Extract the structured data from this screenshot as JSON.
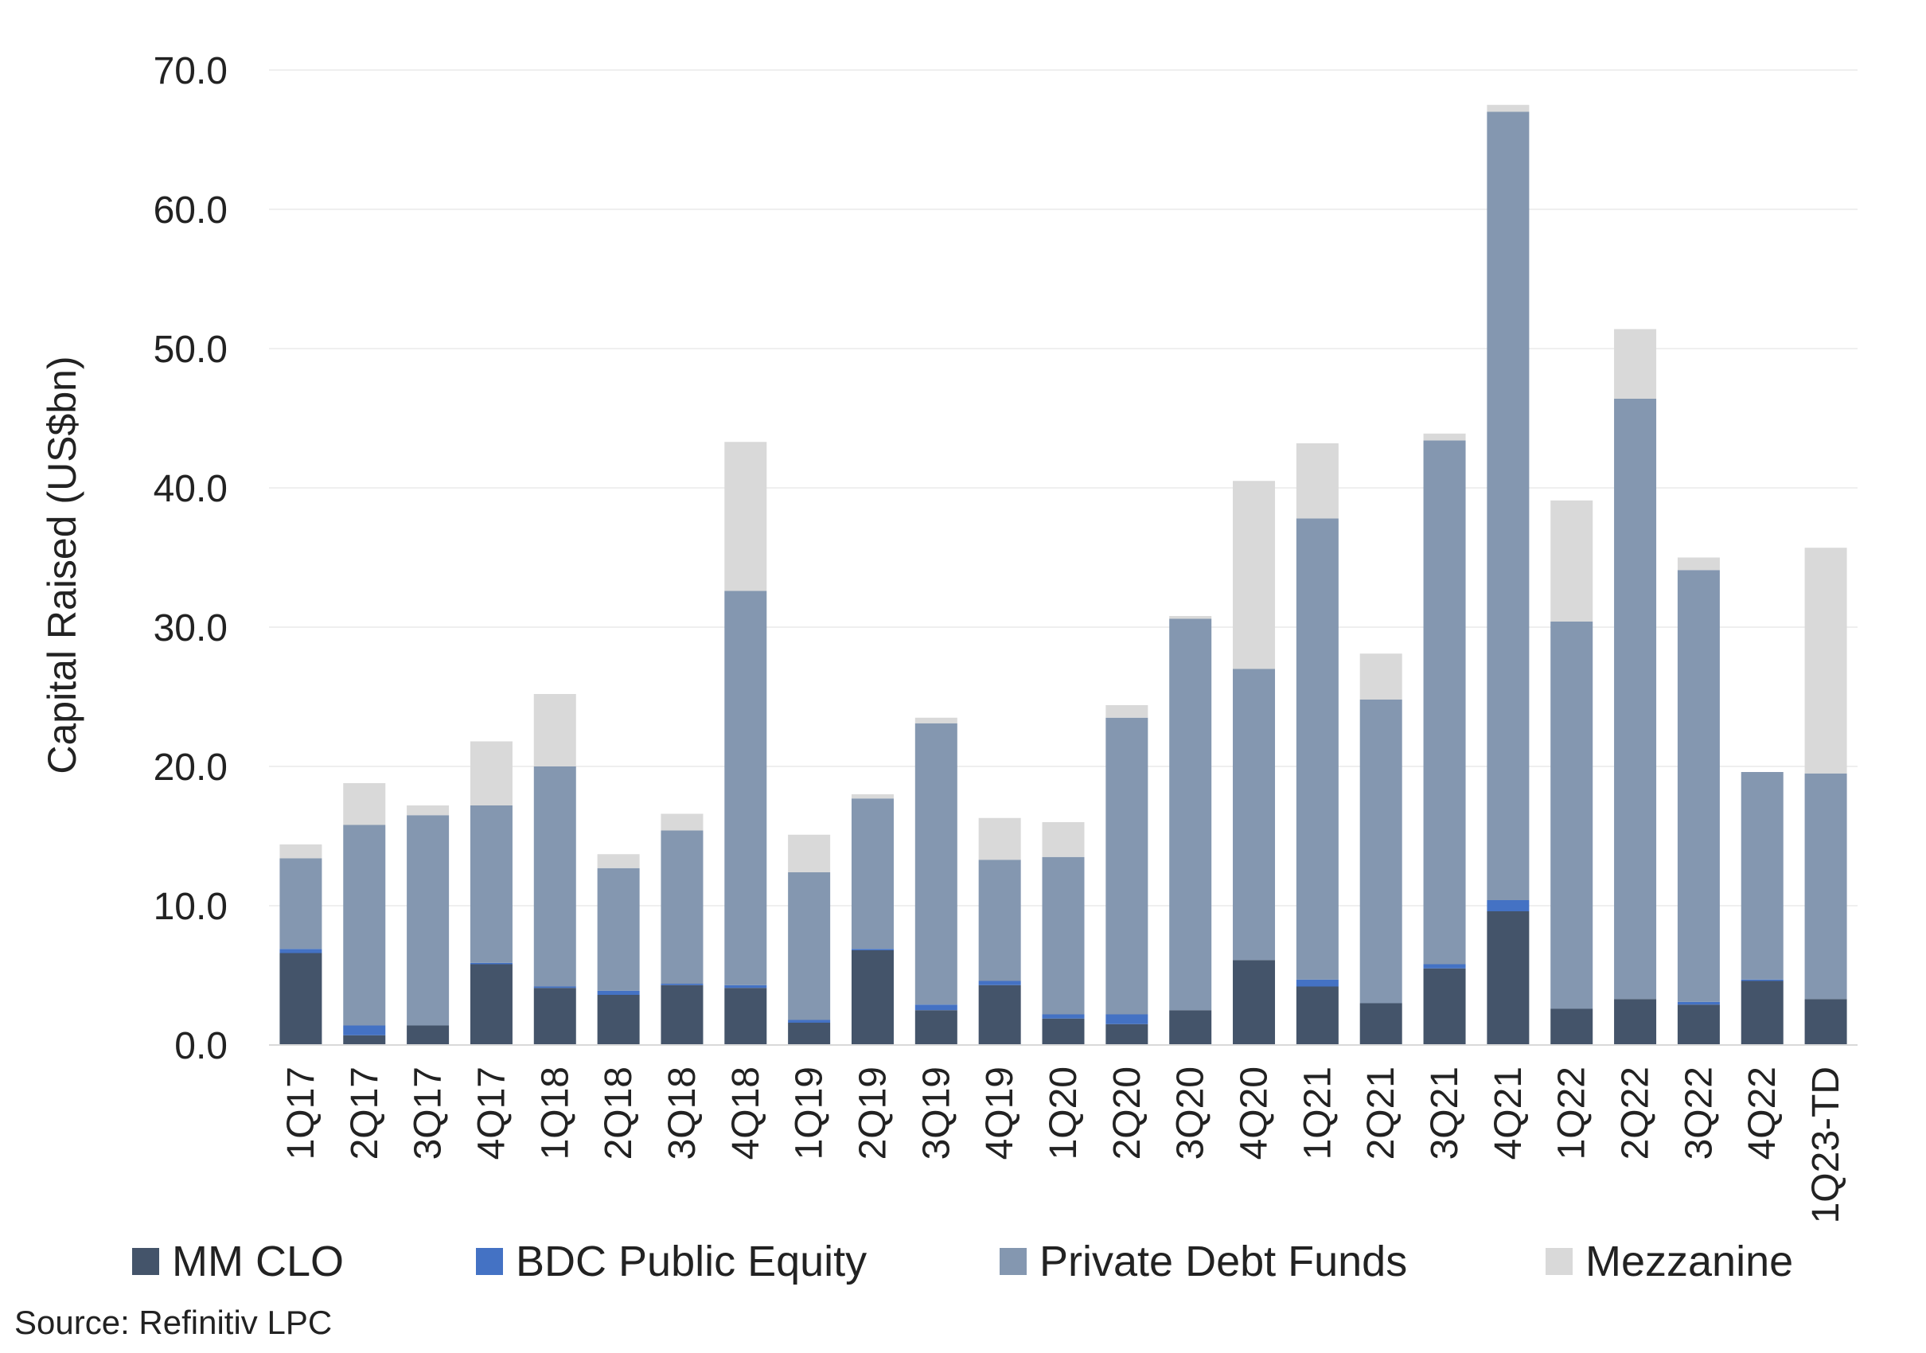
{
  "source": "Source: Refinitiv LPC",
  "colors": {
    "MM CLO": "#44546a",
    "BDC Public Equity": "#4472c4",
    "Private Debt Funds": "#8497b0",
    "Mezzanine": "#d9d9d9"
  },
  "chart_data": {
    "type": "bar",
    "stacked": true,
    "ylabel": "Capital Raised (US$bn)",
    "ylim": [
      0,
      70
    ],
    "yticks": [
      "0.0",
      "10.0",
      "20.0",
      "30.0",
      "40.0",
      "50.0",
      "60.0",
      "70.0"
    ],
    "grid": true,
    "legend_position": "bottom",
    "categories": [
      "1Q17",
      "2Q17",
      "3Q17",
      "4Q17",
      "1Q18",
      "2Q18",
      "3Q18",
      "4Q18",
      "1Q19",
      "2Q19",
      "3Q19",
      "4Q19",
      "1Q20",
      "2Q20",
      "3Q20",
      "4Q20",
      "1Q21",
      "2Q21",
      "3Q21",
      "4Q21",
      "1Q22",
      "2Q22",
      "3Q22",
      "4Q22",
      "1Q23-TD"
    ],
    "series": [
      {
        "name": "MM CLO",
        "values": [
          6.6,
          0.7,
          1.4,
          5.8,
          4.1,
          3.6,
          4.3,
          4.1,
          1.6,
          6.8,
          2.5,
          4.3,
          1.9,
          1.5,
          2.5,
          6.1,
          4.2,
          3.0,
          5.5,
          9.6,
          2.6,
          3.3,
          2.9,
          4.6,
          3.3
        ]
      },
      {
        "name": "BDC Public Equity",
        "values": [
          0.3,
          0.7,
          0.0,
          0.1,
          0.1,
          0.3,
          0.1,
          0.2,
          0.2,
          0.1,
          0.4,
          0.3,
          0.3,
          0.7,
          0.0,
          0.0,
          0.5,
          0.0,
          0.3,
          0.8,
          0.0,
          0.0,
          0.2,
          0.1,
          0.0
        ]
      },
      {
        "name": "Private Debt Funds",
        "values": [
          6.5,
          14.4,
          15.1,
          11.3,
          15.8,
          8.8,
          11.0,
          28.3,
          10.6,
          10.8,
          20.2,
          8.7,
          11.3,
          21.3,
          28.1,
          20.9,
          33.1,
          21.8,
          37.6,
          56.6,
          27.8,
          43.1,
          31.0,
          14.9,
          16.2
        ]
      },
      {
        "name": "Mezzanine",
        "values": [
          1.0,
          3.0,
          0.7,
          4.6,
          5.2,
          1.0,
          1.2,
          10.7,
          2.7,
          0.3,
          0.4,
          3.0,
          2.5,
          0.9,
          0.2,
          13.5,
          5.4,
          3.3,
          0.5,
          0.5,
          8.7,
          5.0,
          0.9,
          0.0,
          16.2
        ]
      }
    ]
  }
}
